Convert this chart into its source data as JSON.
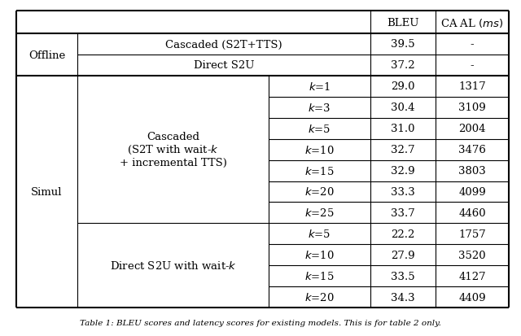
{
  "cascaded_simul_rows": [
    [
      "k=1",
      "29.0",
      "1317"
    ],
    [
      "k=3",
      "30.4",
      "3109"
    ],
    [
      "k=5",
      "31.0",
      "2004"
    ],
    [
      "k=10",
      "32.7",
      "3476"
    ],
    [
      "k=15",
      "32.9",
      "3803"
    ],
    [
      "k=20",
      "33.3",
      "4099"
    ],
    [
      "k=25",
      "33.7",
      "4460"
    ]
  ],
  "direct_simul_rows": [
    [
      "k=5",
      "22.2",
      "1757"
    ],
    [
      "k=10",
      "27.9",
      "3520"
    ],
    [
      "k=15",
      "33.5",
      "4127"
    ],
    [
      "k=20",
      "34.3",
      "4409"
    ]
  ],
  "cascaded_label": "Cascaded\n(S2T with wait-$k$\n+ incremental TTS)",
  "direct_label": "Direct S2U with wait-$k$",
  "simul_label": "Simul",
  "offline_label": "Offline",
  "bg_color": "#ffffff",
  "line_color": "#000000",
  "text_color": "#000000",
  "font_size": 9.5,
  "caption": "Table 1: BLEU scores and latency scores for existing models. This is for table 2 only."
}
